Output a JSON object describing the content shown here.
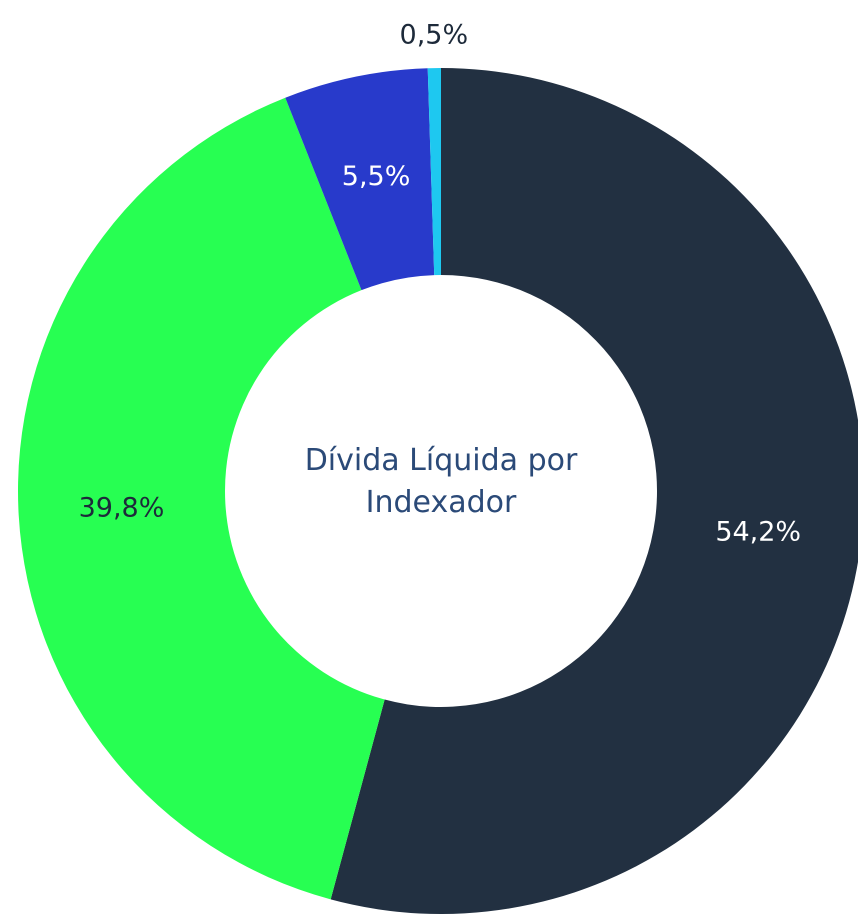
{
  "chart_data": {
    "type": "donut",
    "title": "Dívida Líquida por Indexador",
    "values": [
      54.2,
      39.8,
      5.5,
      0.5
    ],
    "value_labels": [
      "54,2%",
      "39,8%",
      "5,5%",
      "0,5%"
    ],
    "colors": [
      "#223041",
      "#27ff52",
      "#283acb",
      "#1ec8f0"
    ]
  }
}
